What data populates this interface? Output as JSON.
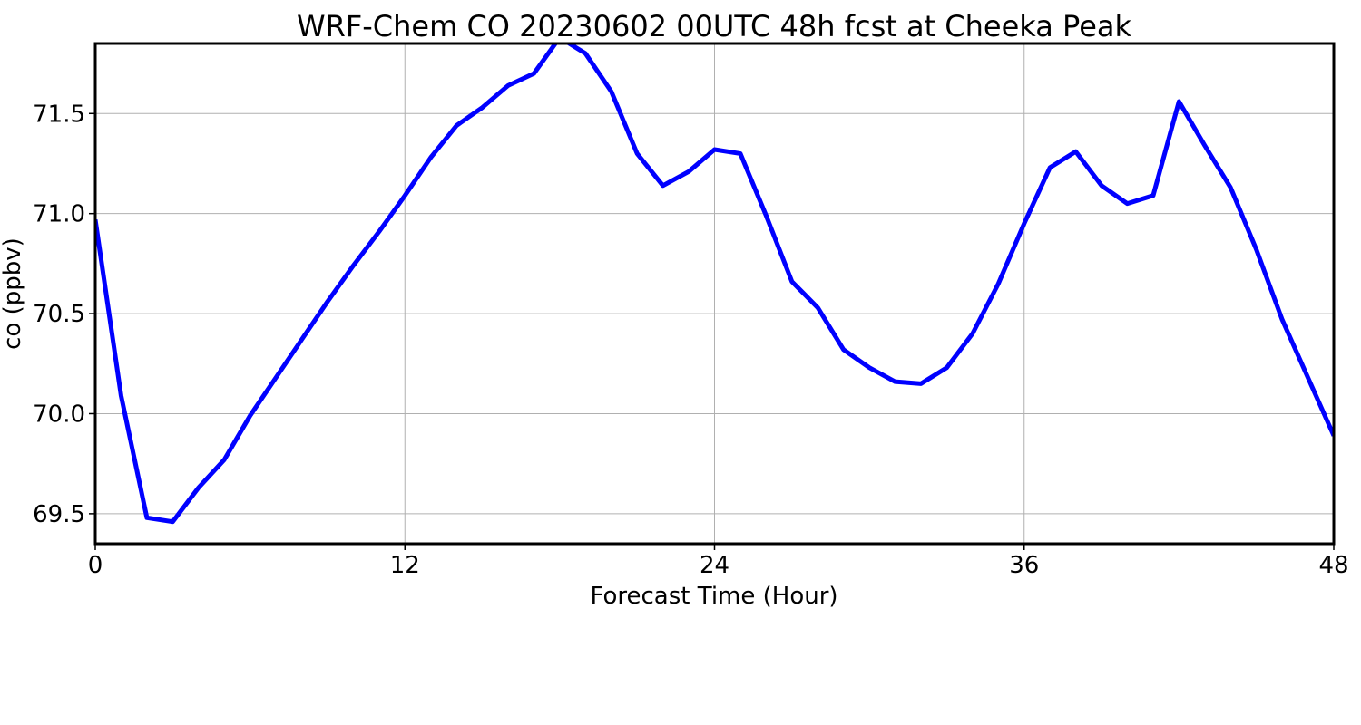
{
  "chart_data": {
    "type": "line",
    "title": "WRF-Chem CO  20230602 00UTC 48h fcst at Cheeka Peak",
    "xlabel": "Forecast Time (Hour)",
    "ylabel": "co  (ppbv)",
    "xlim": [
      0,
      48
    ],
    "ylim": [
      69.35,
      71.85
    ],
    "xticks": [
      0,
      12,
      24,
      36,
      48
    ],
    "xtick_labels": [
      "0",
      "12",
      "24",
      "36",
      "48"
    ],
    "yticks": [
      69.5,
      70.0,
      70.5,
      71.0,
      71.5
    ],
    "ytick_labels": [
      "69.5",
      "70.0",
      "70.5",
      "71.0",
      "71.5"
    ],
    "grid": true,
    "series": [
      {
        "color": "#0000ff",
        "x": [
          0,
          1,
          2,
          3,
          4,
          5,
          6,
          7,
          8,
          9,
          10,
          11,
          12,
          13,
          14,
          15,
          16,
          17,
          18,
          19,
          20,
          21,
          22,
          23,
          24,
          25,
          26,
          27,
          28,
          29,
          30,
          31,
          32,
          33,
          34,
          35,
          36,
          37,
          38,
          39,
          40,
          41,
          42,
          43,
          44,
          45,
          46,
          47,
          48
        ],
        "y": [
          70.97,
          70.09,
          69.48,
          69.46,
          69.63,
          69.77,
          69.99,
          70.18,
          70.37,
          70.56,
          70.74,
          70.91,
          71.09,
          71.28,
          71.44,
          71.53,
          71.64,
          71.7,
          71.88,
          71.8,
          71.61,
          71.3,
          71.14,
          71.21,
          71.32,
          71.3,
          70.99,
          70.66,
          70.53,
          70.32,
          70.23,
          70.16,
          70.15,
          70.23,
          70.4,
          70.65,
          70.95,
          71.23,
          71.31,
          71.14,
          71.05,
          71.09,
          71.56,
          71.34,
          71.13,
          70.82,
          70.47,
          70.18,
          69.89
        ]
      }
    ]
  }
}
